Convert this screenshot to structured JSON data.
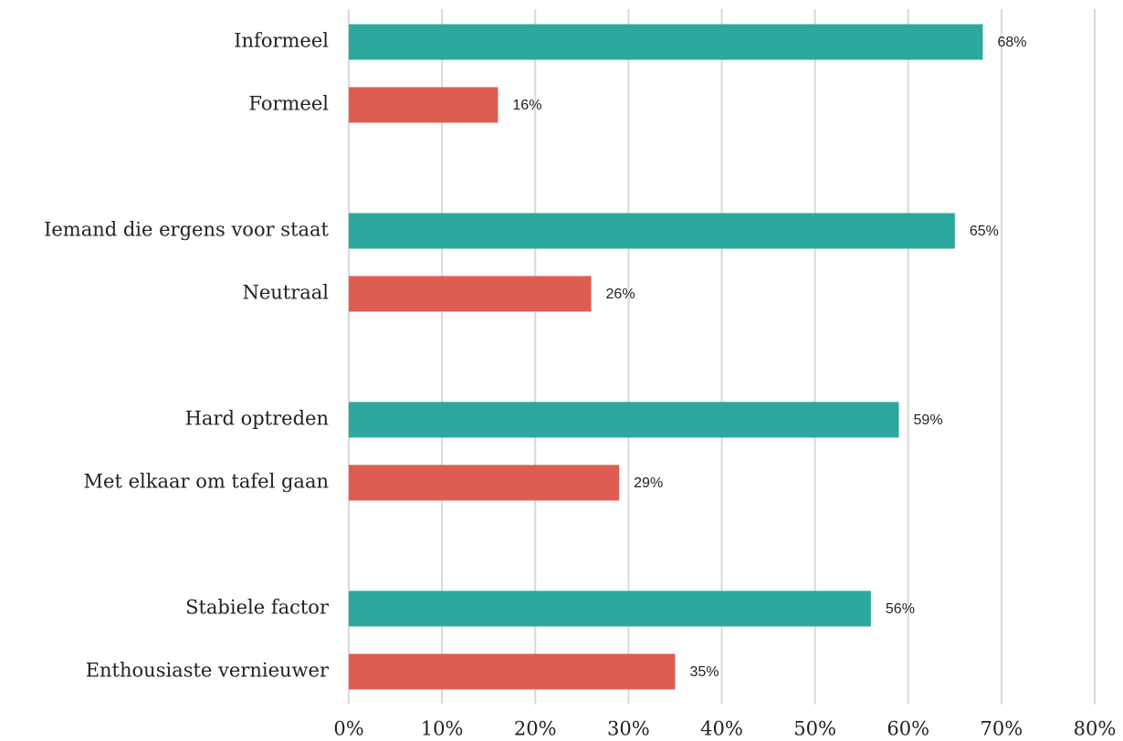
{
  "chart_data": {
    "type": "bar",
    "orientation": "horizontal",
    "categories": [
      "Informeel",
      "Formeel",
      "Iemand die ergens voor staat",
      "Neutraal",
      "Hard optreden",
      "Met elkaar om tafel gaan",
      "Stabiele factor",
      "Enthousiaste vernieuwer"
    ],
    "values": [
      68,
      16,
      65,
      26,
      59,
      29,
      56,
      35
    ],
    "value_labels": [
      "68%",
      "16%",
      "65%",
      "26%",
      "59%",
      "29%",
      "56%",
      "35%"
    ],
    "colors": [
      "#2ca89c",
      "#de5d52",
      "#2ca89c",
      "#de5d52",
      "#2ca89c",
      "#de5d52",
      "#2ca89c",
      "#de5d52"
    ],
    "xlim": [
      0,
      80
    ],
    "xticks": [
      {
        "value": 0,
        "label": "0%"
      },
      {
        "value": 10,
        "label": "10%"
      },
      {
        "value": 20,
        "label": "20%"
      },
      {
        "value": 30,
        "label": "30%"
      },
      {
        "value": 40,
        "label": "40%"
      },
      {
        "value": 50,
        "label": "50%"
      },
      {
        "value": 60,
        "label": "60%"
      },
      {
        "value": 70,
        "label": "70%"
      },
      {
        "value": 80,
        "label": "80%"
      }
    ],
    "grid": true
  }
}
